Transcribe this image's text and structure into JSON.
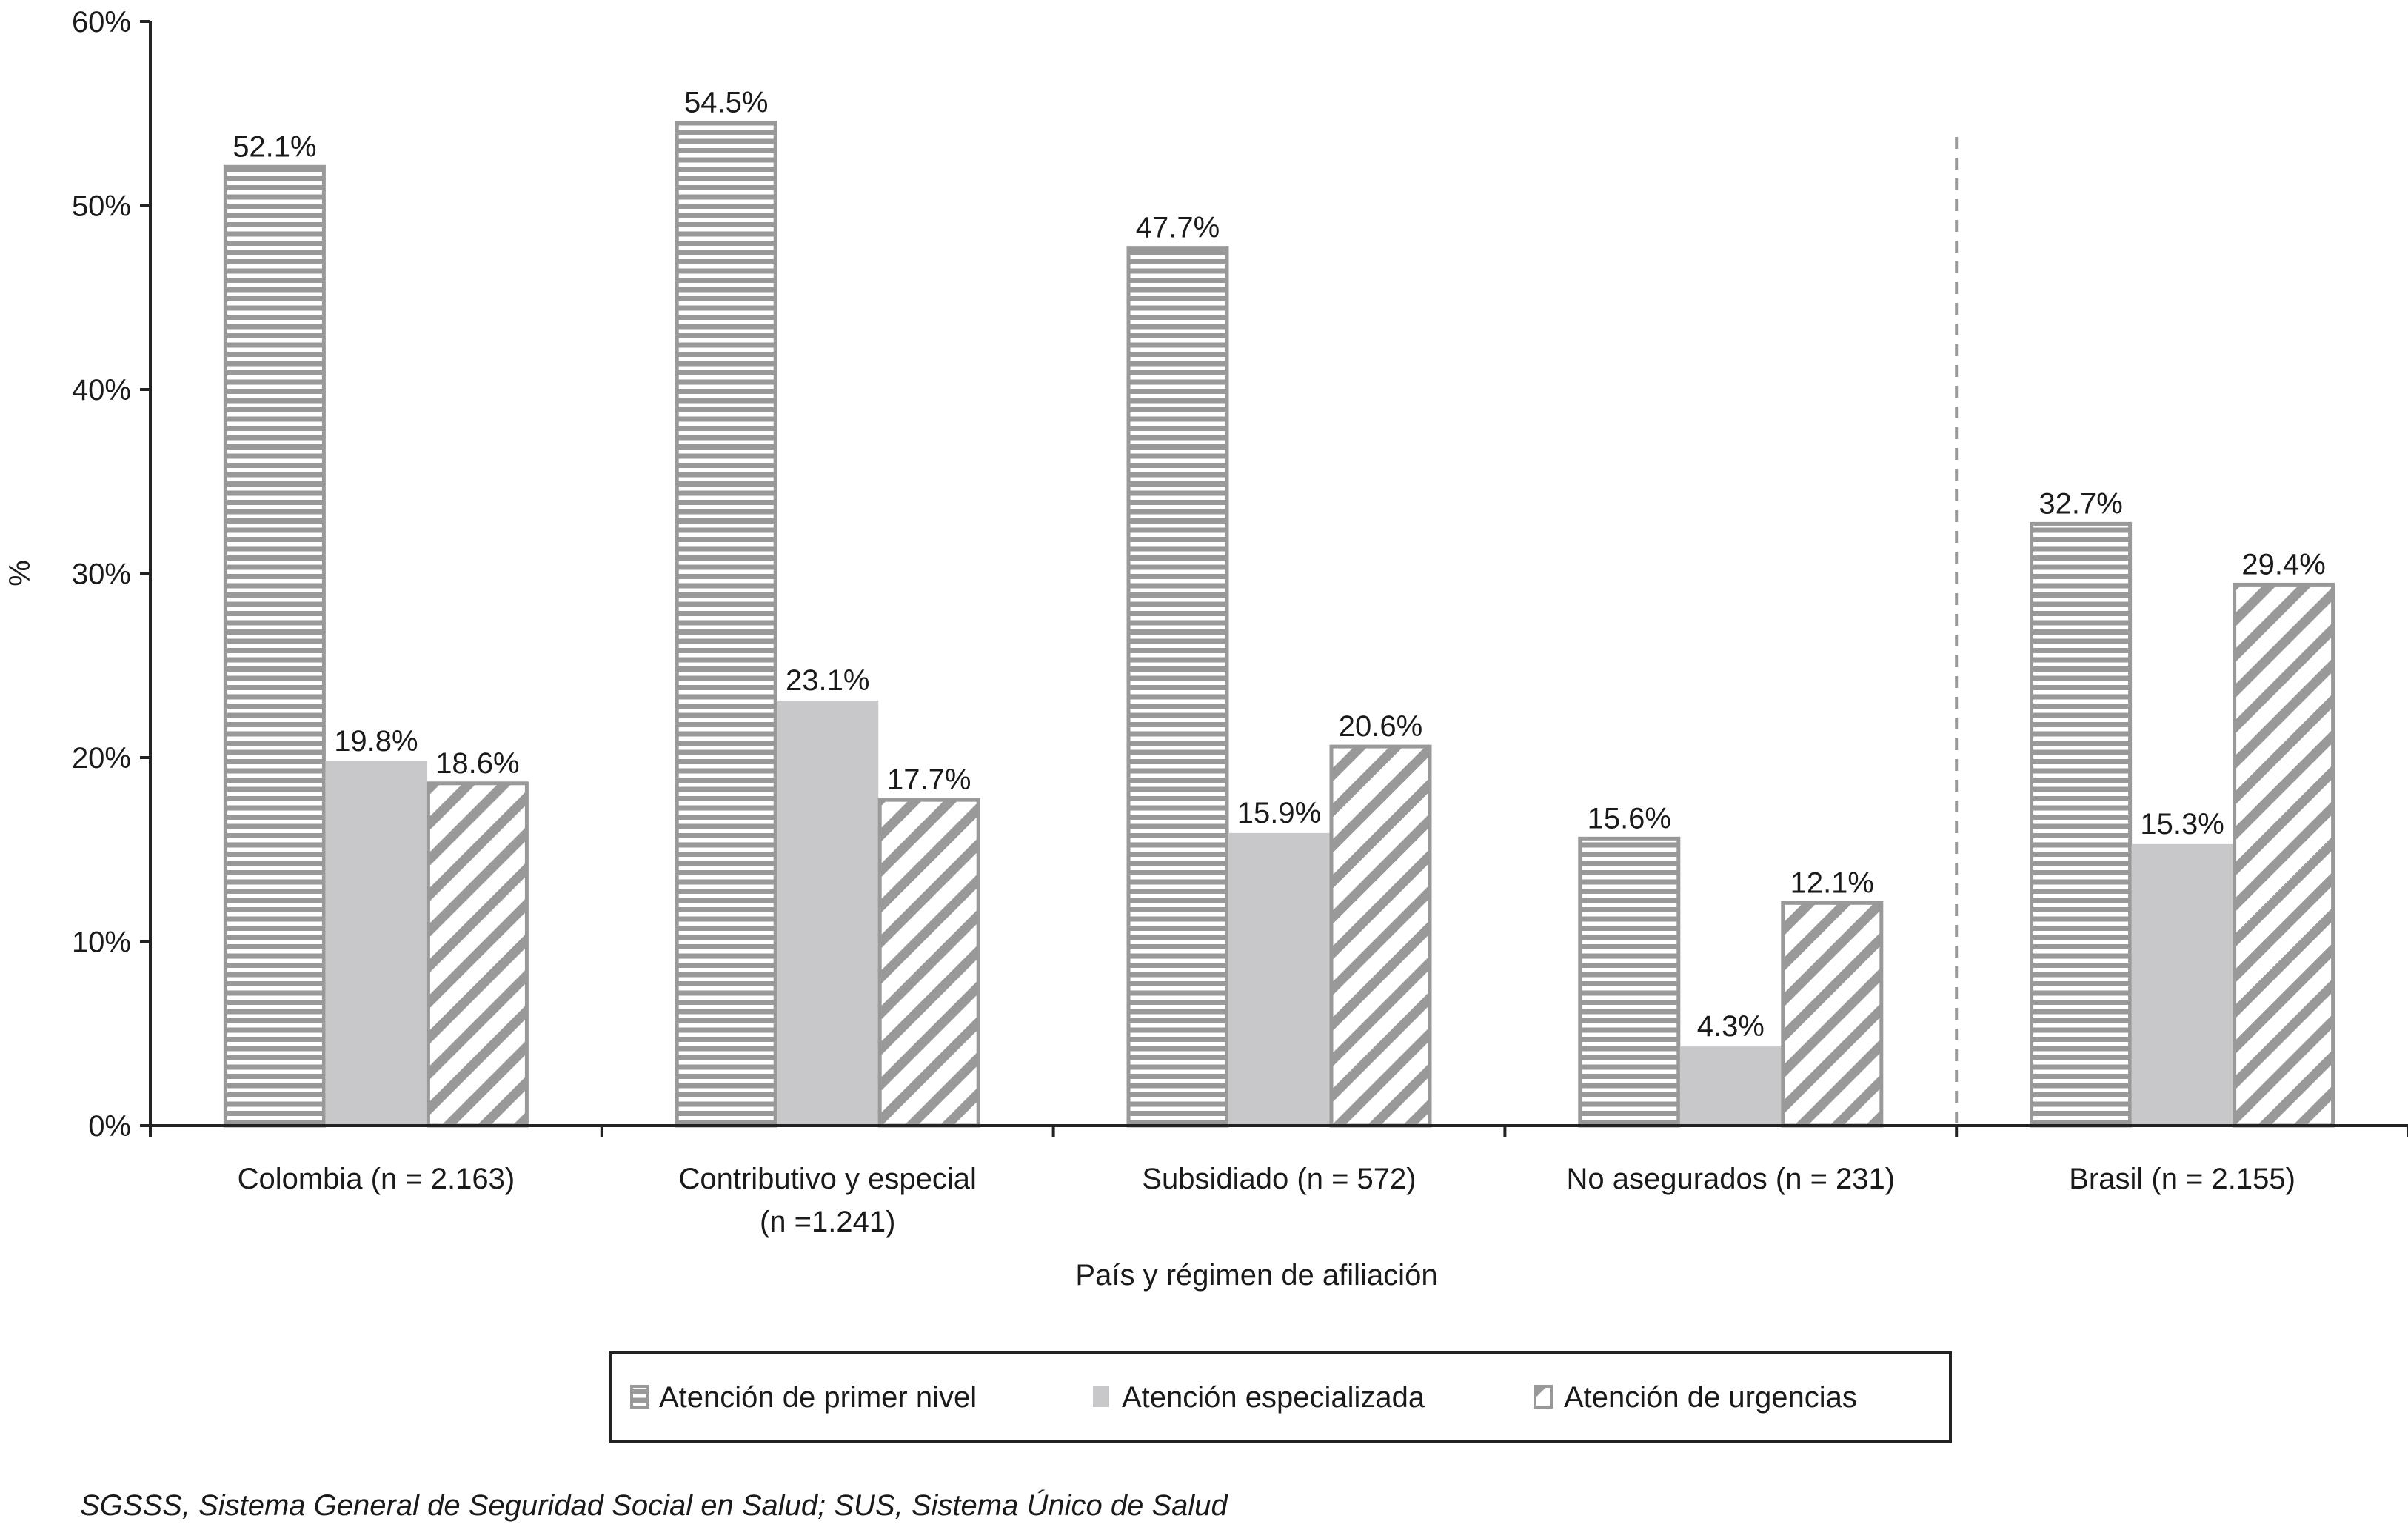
{
  "chart_data": {
    "type": "bar",
    "title": "",
    "xlabel": "País y régimen de afiliación",
    "ylabel": "%",
    "ylim": [
      0,
      60
    ],
    "yticks": [
      "0%",
      "10%",
      "20%",
      "30%",
      "40%",
      "50%",
      "60%"
    ],
    "categories": [
      [
        "Colombia (n = 2.163)"
      ],
      [
        "Contributivo y especial",
        "(n =1.241)"
      ],
      [
        "Subsidiado (n = 572)"
      ],
      [
        "No asegurados (n = 231)"
      ],
      [
        "Brasil (n = 2.155)"
      ]
    ],
    "series": [
      {
        "name": "Atención de primer nivel",
        "pattern": "horizontal-stripes",
        "color": "#999999",
        "values": [
          52.1,
          54.5,
          47.7,
          15.6,
          32.7
        ],
        "labels": [
          "52.1%",
          "54.5%",
          "47.7%",
          "15.6%",
          "32.7%"
        ]
      },
      {
        "name": "Atención especializada",
        "pattern": "solid",
        "color": "#c8c8ca",
        "values": [
          19.8,
          23.1,
          15.9,
          4.3,
          15.3
        ],
        "labels": [
          "19.8%",
          "23.1%",
          "15.9%",
          "4.3%",
          "15.3%"
        ]
      },
      {
        "name": "Atención de urgencias",
        "pattern": "diagonal-stripes",
        "color": "#999999",
        "values": [
          18.6,
          17.7,
          20.6,
          12.1,
          29.4
        ],
        "labels": [
          "18.6%",
          "17.7%",
          "20.6%",
          "12.1%",
          "29.4%"
        ]
      }
    ],
    "separator": "dashed line between No asegurados and Brasil",
    "grid": false,
    "legend_placement": "bottom"
  },
  "footnote": "SGSSS, Sistema General de Seguridad Social en Salud; SUS, Sistema Único de Salud"
}
